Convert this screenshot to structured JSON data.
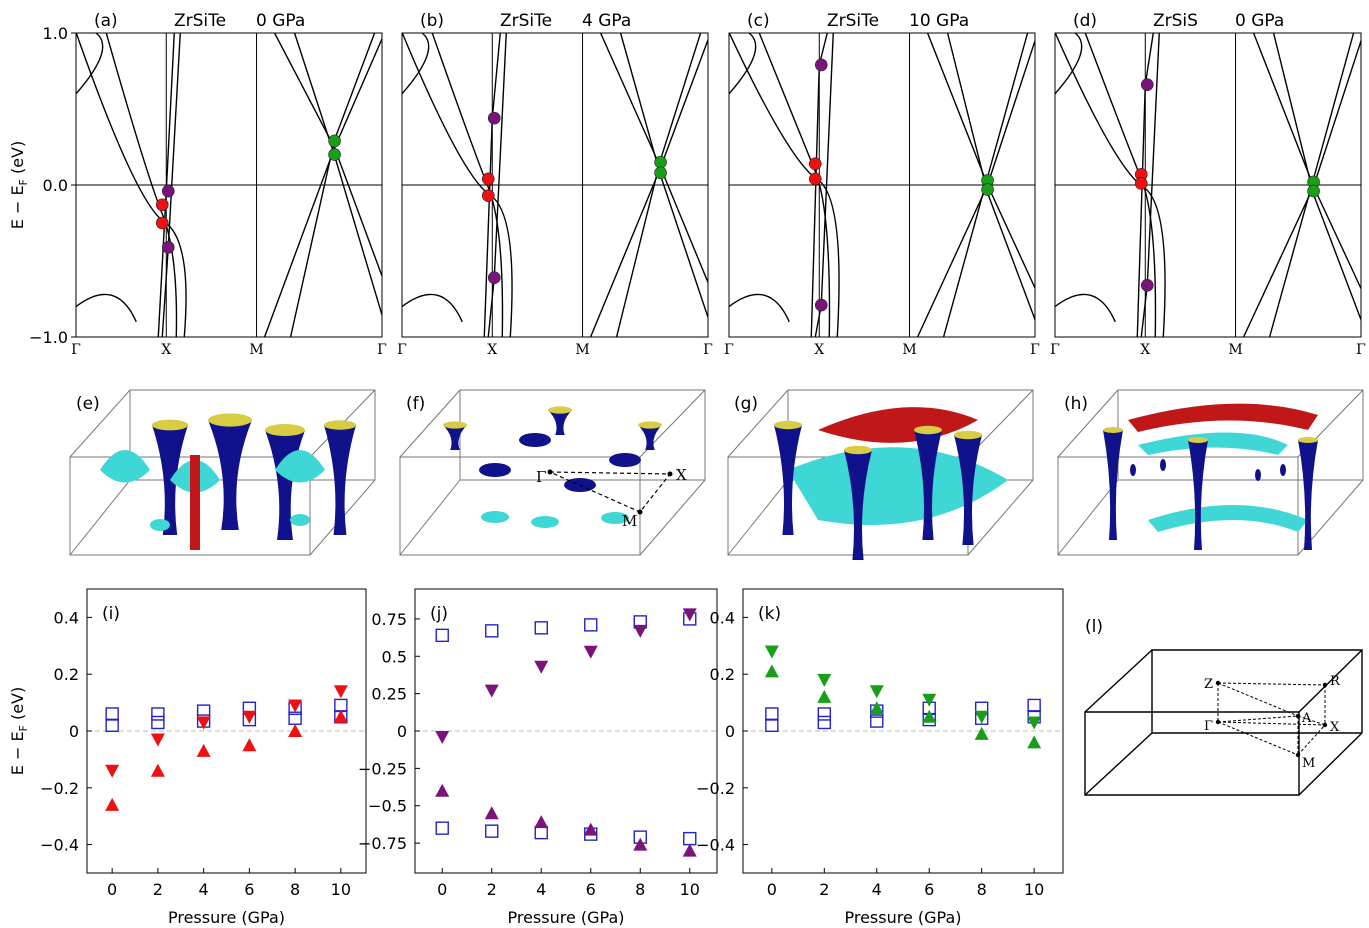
{
  "band_panels": [
    {
      "letter": "(a)",
      "material": "ZrSiTe",
      "pressure": "0 GPa",
      "kpath": [
        "Γ",
        "X",
        "M",
        "Γ"
      ],
      "red": [
        -0.13,
        -0.25
      ],
      "purple": [
        -0.04,
        -0.41
      ],
      "green": [
        0.29,
        0.2
      ]
    },
    {
      "letter": "(b)",
      "material": "ZrSiTe",
      "pressure": "4 GPa",
      "kpath": [
        "Γ",
        "X",
        "M",
        "Γ"
      ],
      "red": [
        0.04,
        -0.07
      ],
      "purple": [
        0.44,
        -0.61
      ],
      "green": [
        0.15,
        0.08
      ]
    },
    {
      "letter": "(c)",
      "material": "ZrSiTe",
      "pressure": "10 GPa",
      "kpath": [
        "Γ",
        "X",
        "M",
        "Γ"
      ],
      "red": [
        0.14,
        0.04
      ],
      "purple": [
        0.79,
        -0.79
      ],
      "green": [
        0.03,
        -0.03
      ]
    },
    {
      "letter": "(d)",
      "material": "ZrSiS",
      "pressure": "0 GPa",
      "kpath": [
        "Γ",
        "X",
        "M",
        "Γ"
      ],
      "red": [
        0.07,
        0.01
      ],
      "purple": [
        0.66,
        -0.66
      ],
      "green": [
        0.02,
        -0.04
      ]
    }
  ],
  "band_axis": {
    "ylabel": "E − E",
    "ylabel_sub": "F",
    "ylabel_unit": " (eV)",
    "ymin": -1.0,
    "ymax": 1.0,
    "ticks": [
      "1.0",
      "0.0",
      "−1.0"
    ]
  },
  "fermi_panels": [
    {
      "letter": "(e)"
    },
    {
      "letter": "(f)",
      "points": [
        "Γ",
        "X",
        "M"
      ]
    },
    {
      "letter": "(g)"
    },
    {
      "letter": "(h)"
    }
  ],
  "chart_data": [
    {
      "type": "scatter",
      "panel": "(i)",
      "xlabel": "Pressure (GPa)",
      "ylabel": "E − E",
      "ylabel_sub": "F",
      "ylabel_unit": " (eV)",
      "x": [
        0,
        2,
        4,
        6,
        8,
        10
      ],
      "xlim": [
        -1.1,
        11.1
      ],
      "ylim": [
        -0.5,
        0.5
      ],
      "yticks": [
        "0.4",
        "0.2",
        "0",
        "−0.2",
        "−0.4"
      ],
      "ytick_values": [
        0.4,
        0.2,
        0,
        -0.2,
        -0.4
      ],
      "series": [
        {
          "marker": "square-open",
          "color": "#2222cc",
          "values": [
            0.06,
            0.06,
            0.07,
            0.08,
            0.08,
            0.09
          ]
        },
        {
          "marker": "square-open",
          "color": "#2222cc",
          "values": [
            0.02,
            0.03,
            0.035,
            0.04,
            0.045,
            0.05
          ]
        },
        {
          "marker": "triangle-down",
          "color": "#ee1111",
          "values": [
            -0.14,
            -0.03,
            0.03,
            0.05,
            0.09,
            0.14
          ]
        },
        {
          "marker": "triangle-up",
          "color": "#ee1111",
          "values": [
            -0.26,
            -0.14,
            -0.07,
            -0.05,
            0.0,
            0.05
          ]
        }
      ]
    },
    {
      "type": "scatter",
      "panel": "(j)",
      "xlabel": "Pressure (GPa)",
      "x": [
        0,
        2,
        4,
        6,
        8,
        10
      ],
      "xlim": [
        -1.1,
        11.1
      ],
      "ylim": [
        -0.95,
        0.95
      ],
      "yticks": [
        "0.75",
        "0.5",
        "0.25",
        "0",
        "−0.25",
        "−0.5",
        "−0.75"
      ],
      "ytick_values": [
        0.75,
        0.5,
        0.25,
        0,
        -0.25,
        -0.5,
        -0.75
      ],
      "series": [
        {
          "marker": "square-open",
          "color": "#2222cc",
          "values": [
            0.64,
            0.67,
            0.69,
            0.71,
            0.73,
            0.75
          ]
        },
        {
          "marker": "square-open",
          "color": "#2222cc",
          "values": [
            -0.65,
            -0.67,
            -0.68,
            -0.69,
            -0.71,
            -0.72
          ]
        },
        {
          "marker": "triangle-down",
          "color": "#7a137a",
          "values": [
            -0.04,
            0.27,
            0.43,
            0.53,
            0.67,
            0.78
          ]
        },
        {
          "marker": "triangle-up",
          "color": "#7a137a",
          "values": [
            -0.4,
            -0.55,
            -0.61,
            -0.66,
            -0.76,
            -0.8
          ]
        }
      ]
    },
    {
      "type": "scatter",
      "panel": "(k)",
      "xlabel": "Pressure (GPa)",
      "x": [
        0,
        2,
        4,
        6,
        8,
        10
      ],
      "xlim": [
        -1.1,
        11.1
      ],
      "ylim": [
        -0.5,
        0.5
      ],
      "yticks": [
        "0.4",
        "0.2",
        "0",
        "−0.2",
        "−0.4"
      ],
      "ytick_values": [
        0.4,
        0.2,
        0,
        -0.2,
        -0.4
      ],
      "series": [
        {
          "marker": "square-open",
          "color": "#2222cc",
          "values": [
            0.06,
            0.06,
            0.07,
            0.08,
            0.08,
            0.09
          ]
        },
        {
          "marker": "square-open",
          "color": "#2222cc",
          "values": [
            0.02,
            0.03,
            0.035,
            0.04,
            0.045,
            0.05
          ]
        },
        {
          "marker": "triangle-down",
          "color": "#17a017",
          "values": [
            0.28,
            0.18,
            0.14,
            0.11,
            0.05,
            0.03
          ]
        },
        {
          "marker": "triangle-up",
          "color": "#17a017",
          "values": [
            0.21,
            0.12,
            0.08,
            0.05,
            -0.01,
            -0.04
          ]
        }
      ]
    }
  ],
  "bz_panel": {
    "letter": "(l)",
    "points": [
      "Z",
      "R",
      "A",
      "Γ",
      "X",
      "M"
    ]
  },
  "colors": {
    "red": "#ee1111",
    "purple": "#7a137a",
    "green": "#17a017",
    "blue": "#2222cc",
    "fs_blue": "#10128c",
    "fs_cyan": "#3fd6d6",
    "fs_red": "#c01818",
    "fs_yellow": "#d8cc44"
  }
}
